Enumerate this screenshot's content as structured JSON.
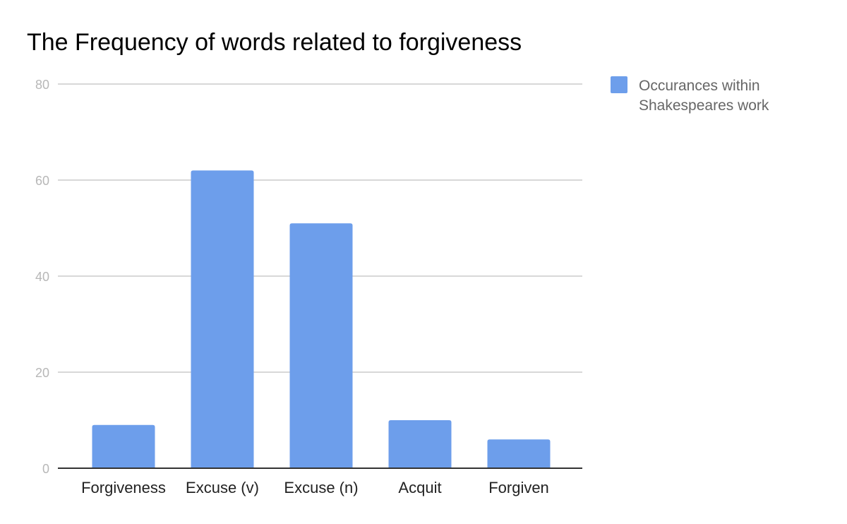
{
  "chart_data": {
    "type": "bar",
    "title": "The Frequency of words related to forgiveness",
    "xlabel": "",
    "ylabel": "",
    "categories": [
      "Forgiveness",
      "Excuse (v)",
      "Excuse (n)",
      "Acquit",
      "Forgiven"
    ],
    "series": [
      {
        "name": "Occurances within Shakespeares work",
        "legend_lines": [
          "Occurances within",
          "Shakespeares work"
        ],
        "values": [
          9,
          62,
          51,
          10,
          6
        ],
        "color": "#6d9eeb"
      }
    ],
    "ylim": [
      0,
      80
    ],
    "yticks": [
      "0",
      "20",
      "40",
      "60",
      "80"
    ],
    "grid": true,
    "legend_position": "right"
  }
}
